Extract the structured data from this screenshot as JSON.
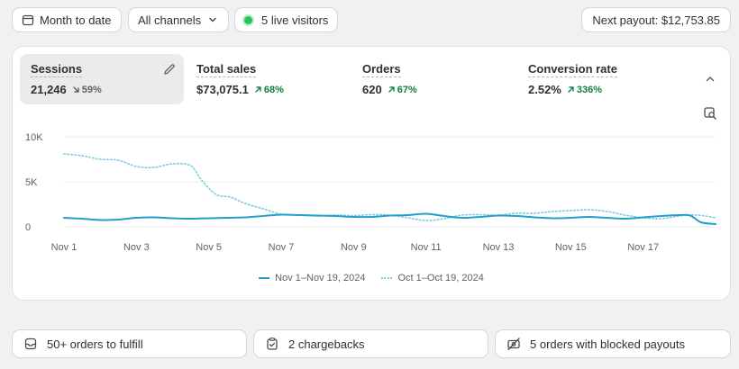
{
  "filters": {
    "date_range": "Month to date",
    "channels": "All channels",
    "live_visitors": "5 live visitors",
    "payout": "Next payout: $12,753.85"
  },
  "metrics": [
    {
      "label": "Sessions",
      "value": "21,246",
      "delta": "59%",
      "direction": "down",
      "selected": true
    },
    {
      "label": "Total sales",
      "value": "$73,075.1",
      "delta": "68%",
      "direction": "up"
    },
    {
      "label": "Orders",
      "value": "620",
      "delta": "67%",
      "direction": "up"
    },
    {
      "label": "Conversion rate",
      "value": "2.52%",
      "delta": "336%",
      "direction": "up"
    }
  ],
  "chart_data": {
    "type": "line",
    "y_ticks": [
      "10K",
      "5K",
      "0"
    ],
    "ylim": [
      0,
      10000
    ],
    "x_tick_labels": [
      "Nov 1",
      "Nov 3",
      "Nov 5",
      "Nov 7",
      "Nov 9",
      "Nov 11",
      "Nov 13",
      "Nov 15",
      "Nov 17"
    ],
    "x_tick_days": [
      1,
      3,
      5,
      7,
      9,
      11,
      13,
      15,
      17
    ],
    "x_range": [
      1,
      19
    ],
    "grid": true,
    "legend_position": "bottom",
    "series": [
      {
        "name": "Nov 1–Nov 19, 2024",
        "style": "solid",
        "color": "#21a0c8",
        "x": [
          1,
          1.5,
          2,
          2.5,
          3,
          3.5,
          4,
          4.5,
          5,
          5.5,
          6,
          6.5,
          7,
          7.5,
          8,
          8.5,
          9,
          9.5,
          10,
          10.5,
          11,
          11.5,
          12,
          12.5,
          13,
          13.5,
          14,
          14.5,
          15,
          15.5,
          16,
          16.5,
          17,
          17.5,
          18,
          18.3,
          18.6,
          19
        ],
        "values": [
          1000,
          900,
          750,
          800,
          1000,
          1050,
          950,
          900,
          950,
          1000,
          1050,
          1200,
          1350,
          1300,
          1250,
          1200,
          1100,
          1100,
          1250,
          1300,
          1450,
          1200,
          1000,
          1100,
          1250,
          1200,
          1050,
          950,
          1000,
          1100,
          1000,
          900,
          1050,
          1200,
          1300,
          1250,
          500,
          300
        ]
      },
      {
        "name": "Oct 1–Oct 19, 2024",
        "style": "dotted",
        "color": "#7ccbe0",
        "x": [
          1,
          1.5,
          2,
          2.5,
          3,
          3.5,
          4,
          4.5,
          4.8,
          5.2,
          5.6,
          6,
          6.5,
          7,
          7.5,
          8,
          8.5,
          9,
          9.5,
          10,
          10.5,
          11,
          11.5,
          12,
          12.5,
          13,
          13.5,
          14,
          14.5,
          15,
          15.5,
          16,
          16.5,
          17,
          17.5,
          18,
          18.5,
          19
        ],
        "values": [
          8100,
          7900,
          7500,
          7400,
          6700,
          6600,
          7000,
          6800,
          5200,
          3600,
          3300,
          2600,
          2000,
          1400,
          1300,
          1200,
          1300,
          1250,
          1350,
          1300,
          1000,
          700,
          900,
          1300,
          1350,
          1300,
          1500,
          1500,
          1700,
          1800,
          1900,
          1700,
          1300,
          1000,
          900,
          1200,
          1300,
          1000
        ]
      }
    ]
  },
  "tasks": [
    {
      "label": "50+ orders to fulfill",
      "icon": "inbox-icon"
    },
    {
      "label": "2 chargebacks",
      "icon": "clipboard-check-icon"
    },
    {
      "label": "5 orders with blocked payouts",
      "icon": "blocked-payout-icon"
    }
  ],
  "colors": {
    "series_current": "#21a0c8",
    "series_previous": "#7ccbe0",
    "positive": "#108043",
    "live": "#29c45a"
  }
}
